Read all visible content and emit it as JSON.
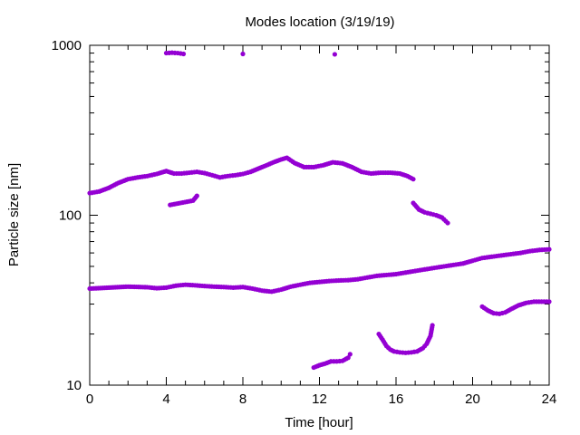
{
  "chart_data": {
    "type": "scatter",
    "title": "Modes location (3/19/19)",
    "xlabel": "Time [hour]",
    "ylabel": "Particle size [nm]",
    "xlim": [
      0,
      24
    ],
    "ylim": [
      10,
      1000
    ],
    "yscale": "log",
    "x_ticks": [
      "0",
      "4",
      "8",
      "12",
      "16",
      "20",
      "24"
    ],
    "y_ticks": [
      "10",
      "100",
      "1000"
    ],
    "grid": false,
    "legend": "none",
    "marker_color": "#9400D3",
    "series": [
      {
        "points": [
          [
            0.0,
            135
          ],
          [
            0.5,
            138
          ],
          [
            1.0,
            145
          ],
          [
            1.5,
            155
          ],
          [
            2.0,
            163
          ],
          [
            2.5,
            167
          ],
          [
            3.0,
            170
          ],
          [
            3.5,
            175
          ],
          [
            4.0,
            182
          ],
          [
            4.4,
            176
          ],
          [
            4.8,
            176
          ],
          [
            5.2,
            178
          ],
          [
            5.6,
            180
          ],
          [
            6.0,
            177
          ],
          [
            6.4,
            172
          ],
          [
            6.8,
            167
          ],
          [
            7.2,
            170
          ],
          [
            7.6,
            172
          ],
          [
            8.0,
            175
          ],
          [
            8.4,
            180
          ],
          [
            8.8,
            188
          ],
          [
            9.2,
            196
          ],
          [
            9.6,
            205
          ],
          [
            10.0,
            213
          ],
          [
            10.3,
            218
          ],
          [
            10.7,
            203
          ],
          [
            11.2,
            192
          ],
          [
            11.7,
            192
          ],
          [
            12.2,
            197
          ],
          [
            12.7,
            205
          ],
          [
            13.2,
            202
          ],
          [
            13.7,
            192
          ],
          [
            14.2,
            180
          ],
          [
            14.7,
            176
          ],
          [
            15.2,
            178
          ],
          [
            15.7,
            178
          ],
          [
            16.2,
            176
          ],
          [
            16.6,
            170
          ],
          [
            16.9,
            163
          ]
        ]
      },
      {
        "points": [
          [
            16.9,
            118
          ],
          [
            17.2,
            108
          ],
          [
            17.5,
            104
          ],
          [
            17.8,
            102
          ],
          [
            18.1,
            100
          ],
          [
            18.4,
            97
          ],
          [
            18.7,
            90
          ],
          [
            4.2,
            115
          ],
          [
            5.4,
            122
          ],
          [
            5.6,
            130
          ]
        ]
      },
      {
        "points": [
          [
            4.0,
            900
          ],
          [
            4.3,
            905
          ],
          [
            4.6,
            900
          ],
          [
            4.9,
            890
          ],
          [
            8.0,
            890
          ],
          [
            12.8,
            885
          ]
        ]
      },
      {
        "points": [
          [
            0.0,
            37
          ],
          [
            1.0,
            37.5
          ],
          [
            2.0,
            38
          ],
          [
            3.0,
            37.7
          ],
          [
            3.5,
            37.2
          ],
          [
            4.0,
            37.5
          ],
          [
            4.5,
            38.5
          ],
          [
            5.0,
            39
          ],
          [
            5.5,
            38.7
          ],
          [
            6.0,
            38.3
          ],
          [
            6.5,
            38
          ],
          [
            7.0,
            37.8
          ],
          [
            7.5,
            37.5
          ],
          [
            8.0,
            37.8
          ],
          [
            8.5,
            37
          ],
          [
            9.0,
            36
          ],
          [
            9.5,
            35.5
          ],
          [
            10.0,
            36.5
          ],
          [
            10.5,
            38
          ],
          [
            11.0,
            39
          ],
          [
            11.5,
            40
          ],
          [
            12.0,
            40.5
          ],
          [
            12.5,
            41
          ],
          [
            13.0,
            41.3
          ],
          [
            13.5,
            41.5
          ],
          [
            14.0,
            42
          ],
          [
            14.5,
            43
          ],
          [
            15.0,
            44
          ],
          [
            15.5,
            44.5
          ],
          [
            16.0,
            45
          ],
          [
            16.5,
            46
          ],
          [
            17.0,
            47
          ],
          [
            17.5,
            48
          ],
          [
            18.0,
            49
          ],
          [
            18.5,
            50
          ],
          [
            19.0,
            51
          ],
          [
            19.5,
            52
          ],
          [
            20.0,
            54
          ],
          [
            20.5,
            56
          ],
          [
            21.0,
            57
          ],
          [
            21.5,
            58
          ],
          [
            22.0,
            59
          ],
          [
            22.5,
            60
          ],
          [
            23.0,
            61.5
          ],
          [
            23.5,
            62.5
          ],
          [
            24.0,
            63
          ]
        ]
      },
      {
        "points": [
          [
            20.5,
            29
          ],
          [
            20.8,
            27.5
          ],
          [
            21.1,
            26.5
          ],
          [
            21.4,
            26.3
          ],
          [
            21.7,
            26.8
          ],
          [
            22.0,
            28
          ],
          [
            22.4,
            29.5
          ],
          [
            22.8,
            30.5
          ],
          [
            23.2,
            31
          ],
          [
            23.6,
            31
          ],
          [
            24.0,
            31
          ]
        ]
      },
      {
        "points": [
          [
            11.7,
            12.7
          ],
          [
            12.0,
            13.1
          ],
          [
            12.3,
            13.4
          ],
          [
            12.6,
            13.8
          ],
          [
            12.9,
            13.8
          ],
          [
            13.2,
            13.9
          ],
          [
            13.5,
            14.5
          ],
          [
            13.6,
            15.2
          ]
        ]
      },
      {
        "points": [
          [
            15.1,
            20
          ],
          [
            15.3,
            18.5
          ],
          [
            15.5,
            17
          ],
          [
            15.7,
            16.2
          ],
          [
            15.9,
            15.8
          ],
          [
            16.2,
            15.6
          ],
          [
            16.5,
            15.5
          ],
          [
            16.8,
            15.6
          ],
          [
            17.1,
            15.8
          ],
          [
            17.4,
            16.5
          ],
          [
            17.6,
            17.5
          ],
          [
            17.8,
            19.5
          ],
          [
            17.9,
            22.5
          ]
        ]
      }
    ]
  }
}
